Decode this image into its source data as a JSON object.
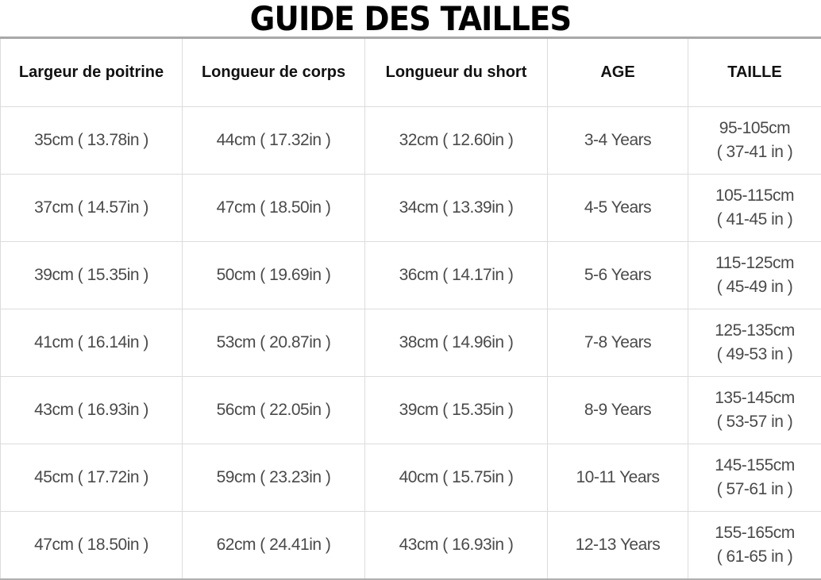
{
  "title": "GUIDE DES TAILLES",
  "table": {
    "headers": [
      "Largeur de poitrine",
      "Longueur de corps",
      "Longueur du short",
      "AGE",
      "TAILLE"
    ],
    "rows": [
      [
        "35cm ( 13.78in )",
        "44cm ( 17.32in )",
        "32cm ( 12.60in )",
        "3-4 Years",
        "95-105cm",
        "( 37-41 in )"
      ],
      [
        "37cm ( 14.57in )",
        "47cm ( 18.50in )",
        "34cm ( 13.39in )",
        "4-5 Years",
        "105-115cm",
        "( 41-45 in )"
      ],
      [
        "39cm ( 15.35in )",
        "50cm ( 19.69in )",
        "36cm ( 14.17in )",
        "5-6 Years",
        "115-125cm",
        "( 45-49 in )"
      ],
      [
        "41cm ( 16.14in )",
        "53cm ( 20.87in )",
        "38cm ( 14.96in )",
        "7-8 Years",
        "125-135cm",
        "( 49-53 in )"
      ],
      [
        "43cm ( 16.93in )",
        "56cm ( 22.05in )",
        "39cm ( 15.35in )",
        "8-9 Years",
        "135-145cm",
        "( 53-57 in )"
      ],
      [
        "45cm ( 17.72in )",
        "59cm ( 23.23in )",
        "40cm ( 15.75in )",
        "10-11 Years",
        "145-155cm",
        "( 57-61 in )"
      ],
      [
        "47cm ( 18.50in )",
        "62cm ( 24.41in )",
        "43cm ( 16.93in )",
        "12-13 Years",
        "155-165cm",
        "( 61-65 in )"
      ]
    ]
  }
}
